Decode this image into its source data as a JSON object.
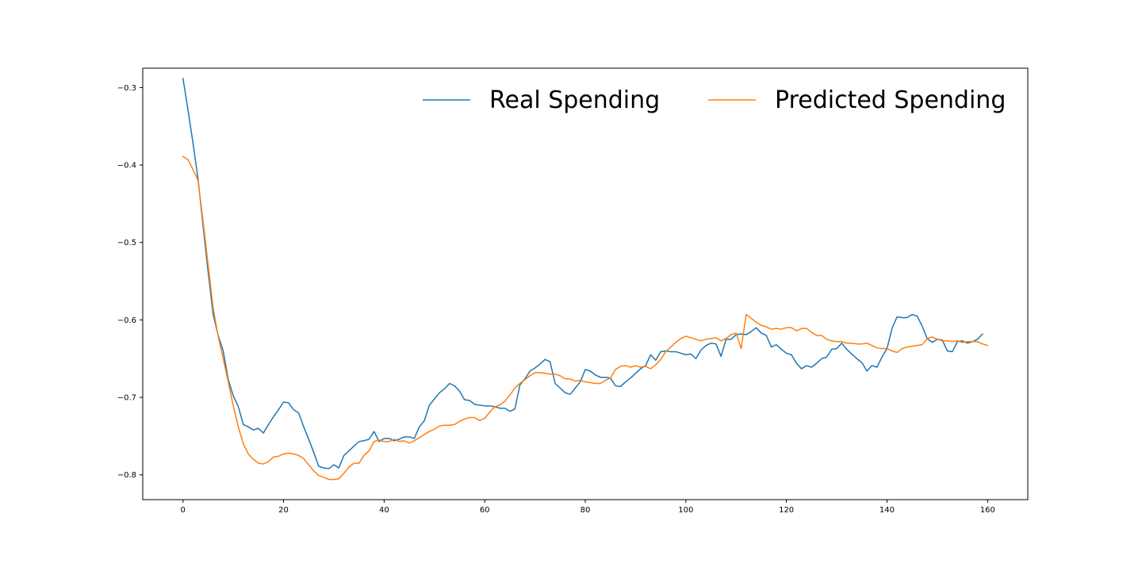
{
  "chart_data": {
    "type": "line",
    "title": "",
    "xlabel": "",
    "ylabel": "",
    "xlim": [
      -8,
      168
    ],
    "ylim": [
      -0.832,
      -0.275
    ],
    "xticks": [
      0,
      20,
      40,
      60,
      80,
      100,
      120,
      140,
      160
    ],
    "xtick_labels": [
      "0",
      "20",
      "40",
      "60",
      "80",
      "100",
      "120",
      "140",
      "160"
    ],
    "yticks": [
      -0.3,
      -0.4,
      -0.5,
      -0.6,
      -0.7,
      -0.8
    ],
    "ytick_labels": [
      "−0.3",
      "−0.4",
      "−0.5",
      "−0.6",
      "−0.7",
      "−0.8"
    ],
    "grid": false,
    "legend_position": "top-right",
    "series": [
      {
        "name": "Real Spending",
        "color": "#1f77b4",
        "x_start": 0,
        "x_step": 1,
        "values": [
          -0.288,
          -0.329,
          -0.372,
          -0.418,
          -0.479,
          -0.538,
          -0.593,
          -0.62,
          -0.64,
          -0.677,
          -0.698,
          -0.712,
          -0.735,
          -0.738,
          -0.742,
          -0.74,
          -0.746,
          -0.735,
          -0.725,
          -0.716,
          -0.706,
          -0.707,
          -0.716,
          -0.72,
          -0.738,
          -0.754,
          -0.771,
          -0.789,
          -0.791,
          -0.792,
          -0.787,
          -0.791,
          -0.775,
          -0.769,
          -0.763,
          -0.757,
          -0.756,
          -0.754,
          -0.744,
          -0.757,
          -0.753,
          -0.753,
          -0.756,
          -0.754,
          -0.751,
          -0.751,
          -0.753,
          -0.738,
          -0.73,
          -0.71,
          -0.702,
          -0.694,
          -0.689,
          -0.682,
          -0.685,
          -0.692,
          -0.703,
          -0.704,
          -0.709,
          -0.71,
          -0.711,
          -0.711,
          -0.712,
          -0.714,
          -0.714,
          -0.718,
          -0.715,
          -0.684,
          -0.676,
          -0.666,
          -0.662,
          -0.657,
          -0.651,
          -0.654,
          -0.682,
          -0.688,
          -0.694,
          -0.696,
          -0.688,
          -0.68,
          -0.664,
          -0.666,
          -0.671,
          -0.674,
          -0.674,
          -0.675,
          -0.685,
          -0.686,
          -0.68,
          -0.675,
          -0.669,
          -0.663,
          -0.659,
          -0.645,
          -0.652,
          -0.641,
          -0.64,
          -0.641,
          -0.641,
          -0.643,
          -0.645,
          -0.644,
          -0.65,
          -0.639,
          -0.633,
          -0.63,
          -0.631,
          -0.647,
          -0.625,
          -0.625,
          -0.619,
          -0.618,
          -0.619,
          -0.615,
          -0.61,
          -0.617,
          -0.62,
          -0.635,
          -0.632,
          -0.638,
          -0.643,
          -0.645,
          -0.656,
          -0.663,
          -0.659,
          -0.661,
          -0.656,
          -0.65,
          -0.648,
          -0.638,
          -0.637,
          -0.63,
          -0.638,
          -0.644,
          -0.65,
          -0.655,
          -0.666,
          -0.659,
          -0.661,
          -0.648,
          -0.637,
          -0.611,
          -0.596,
          -0.597,
          -0.597,
          -0.593,
          -0.595,
          -0.608,
          -0.624,
          -0.629,
          -0.625,
          -0.626,
          -0.64,
          -0.641,
          -0.628,
          -0.627,
          -0.63,
          -0.628,
          -0.625,
          -0.618
        ]
      },
      {
        "name": "Predicted Spending",
        "color": "#ff7f0e",
        "x_start": 0,
        "x_step": 1,
        "values": [
          -0.389,
          -0.393,
          -0.406,
          -0.42,
          -0.473,
          -0.529,
          -0.585,
          -0.621,
          -0.65,
          -0.68,
          -0.711,
          -0.738,
          -0.76,
          -0.773,
          -0.78,
          -0.785,
          -0.786,
          -0.783,
          -0.777,
          -0.776,
          -0.773,
          -0.772,
          -0.773,
          -0.775,
          -0.779,
          -0.787,
          -0.795,
          -0.801,
          -0.803,
          -0.806,
          -0.806,
          -0.805,
          -0.798,
          -0.79,
          -0.785,
          -0.785,
          -0.775,
          -0.769,
          -0.757,
          -0.755,
          -0.757,
          -0.757,
          -0.754,
          -0.757,
          -0.756,
          -0.759,
          -0.756,
          -0.752,
          -0.748,
          -0.744,
          -0.741,
          -0.737,
          -0.736,
          -0.736,
          -0.735,
          -0.731,
          -0.728,
          -0.726,
          -0.726,
          -0.73,
          -0.727,
          -0.719,
          -0.712,
          -0.71,
          -0.705,
          -0.697,
          -0.688,
          -0.682,
          -0.677,
          -0.672,
          -0.668,
          -0.668,
          -0.669,
          -0.67,
          -0.67,
          -0.672,
          -0.676,
          -0.676,
          -0.679,
          -0.678,
          -0.68,
          -0.681,
          -0.682,
          -0.682,
          -0.678,
          -0.675,
          -0.664,
          -0.66,
          -0.659,
          -0.661,
          -0.659,
          -0.661,
          -0.66,
          -0.663,
          -0.658,
          -0.651,
          -0.641,
          -0.635,
          -0.629,
          -0.624,
          -0.621,
          -0.623,
          -0.625,
          -0.627,
          -0.625,
          -0.624,
          -0.623,
          -0.627,
          -0.624,
          -0.619,
          -0.617,
          -0.637,
          -0.593,
          -0.598,
          -0.603,
          -0.607,
          -0.609,
          -0.612,
          -0.611,
          -0.612,
          -0.61,
          -0.61,
          -0.614,
          -0.611,
          -0.611,
          -0.616,
          -0.62,
          -0.62,
          -0.625,
          -0.627,
          -0.628,
          -0.628,
          -0.63,
          -0.63,
          -0.631,
          -0.631,
          -0.63,
          -0.633,
          -0.636,
          -0.637,
          -0.637,
          -0.64,
          -0.642,
          -0.637,
          -0.635,
          -0.634,
          -0.633,
          -0.632,
          -0.624,
          -0.622,
          -0.625,
          -0.627,
          -0.627,
          -0.628,
          -0.627,
          -0.629,
          -0.628,
          -0.628,
          -0.628,
          -0.631,
          -0.633
        ]
      }
    ]
  }
}
